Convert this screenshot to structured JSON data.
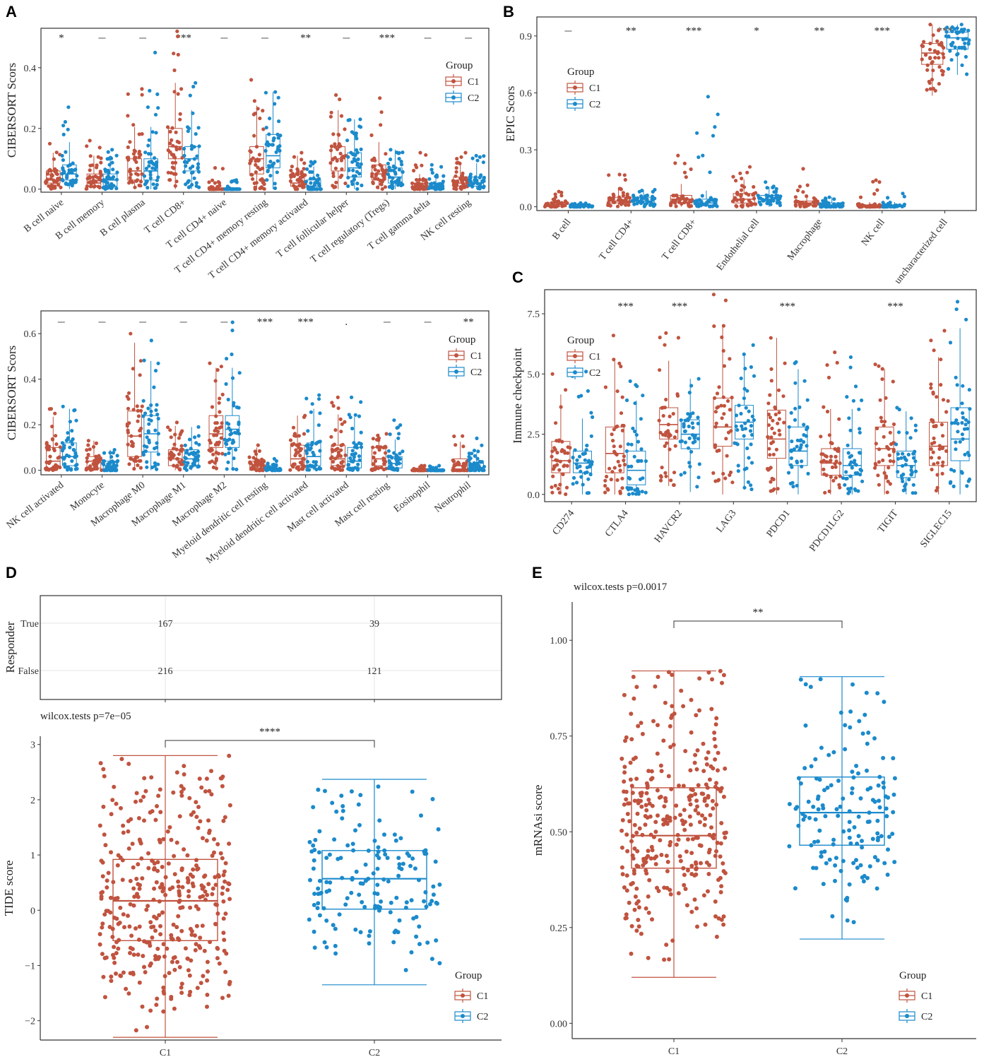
{
  "colors": {
    "C1": "#C0533F",
    "C2": "#1B8ACB",
    "frame": "#333333",
    "grid": "#e6e6e6"
  },
  "legend": {
    "title": "Group",
    "groups": [
      "C1",
      "C2"
    ]
  },
  "panels": {
    "A": "A",
    "B": "B",
    "C": "C",
    "D": "D",
    "E": "E"
  },
  "chart_data": [
    {
      "id": "A_top",
      "type": "box+jitter",
      "ylabel": "CIBERSORT Scors",
      "ylim": [
        -0.01,
        0.53
      ],
      "yticks": [
        "0.0",
        "0.2",
        "0.4"
      ],
      "ytick_values": [
        0,
        0.2,
        0.4
      ],
      "categories": [
        "B cell naive",
        "B cell memory",
        "B cell plasma",
        "T cell CD8+",
        "T cell CD4+ naive",
        "T cell CD4+ memory resting",
        "T cell CD4+ memory activated",
        "T cell follicular helper",
        "T cell regulatory (Tregs)",
        "T cell gamma delta",
        "NK cell resting"
      ],
      "significance": [
        "*",
        "_",
        "_",
        "***",
        "_",
        "_",
        "**",
        "_",
        "***",
        "_",
        "_"
      ],
      "series": [
        {
          "name": "C1",
          "q1": [
            0.02,
            0.01,
            0.03,
            0.1,
            0.0,
            0.05,
            0.01,
            0.06,
            0.03,
            0.0,
            0.01
          ],
          "median": [
            0.03,
            0.02,
            0.06,
            0.14,
            0.0,
            0.1,
            0.02,
            0.1,
            0.05,
            0.01,
            0.02
          ],
          "q3": [
            0.06,
            0.05,
            0.1,
            0.2,
            0.0,
            0.14,
            0.05,
            0.14,
            0.08,
            0.02,
            0.04
          ],
          "max": [
            0.15,
            0.16,
            0.33,
            0.52,
            0.07,
            0.36,
            0.12,
            0.31,
            0.3,
            0.12,
            0.12
          ]
        },
        {
          "name": "C2",
          "q1": [
            0.03,
            0.01,
            0.03,
            0.06,
            0.0,
            0.07,
            0.0,
            0.04,
            0.02,
            0.0,
            0.01
          ],
          "median": [
            0.05,
            0.03,
            0.06,
            0.1,
            0.0,
            0.11,
            0.01,
            0.07,
            0.04,
            0.01,
            0.02
          ],
          "q3": [
            0.08,
            0.05,
            0.1,
            0.14,
            0.0,
            0.18,
            0.03,
            0.12,
            0.07,
            0.02,
            0.04
          ],
          "max": [
            0.27,
            0.13,
            0.45,
            0.35,
            0.03,
            0.32,
            0.09,
            0.23,
            0.13,
            0.08,
            0.11
          ]
        }
      ]
    },
    {
      "id": "A_bottom",
      "type": "box+jitter",
      "ylabel": "CIBERSORT Scors",
      "ylim": [
        -0.02,
        0.7
      ],
      "yticks": [
        "0.0",
        "0.2",
        "0.4",
        "0.6"
      ],
      "ytick_values": [
        0,
        0.2,
        0.4,
        0.6
      ],
      "categories": [
        "NK cell activated",
        "Monocyte",
        "Macrophage M0",
        "Macrophage M1",
        "Macrophage M2",
        "Myeloid dendritic cell resting",
        "Myeloid dendritic cell activated",
        "Mast cell activated",
        "Mast cell resting",
        "Eosinophil",
        "Neutrophil"
      ],
      "significance": [
        "_",
        "_",
        "_",
        "_",
        "_",
        "***",
        "***",
        ".",
        "_",
        "_",
        "**"
      ],
      "series": [
        {
          "name": "C1",
          "q1": [
            0.01,
            0.01,
            0.06,
            0.02,
            0.1,
            0.0,
            0.02,
            0.02,
            0.02,
            0.0,
            0.0
          ],
          "median": [
            0.04,
            0.04,
            0.15,
            0.05,
            0.16,
            0.01,
            0.05,
            0.05,
            0.05,
            0.0,
            0.02
          ],
          "q3": [
            0.1,
            0.06,
            0.26,
            0.09,
            0.24,
            0.04,
            0.11,
            0.11,
            0.1,
            0.0,
            0.05
          ],
          "max": [
            0.27,
            0.13,
            0.6,
            0.21,
            0.47,
            0.11,
            0.24,
            0.32,
            0.16,
            0.02,
            0.15
          ]
        },
        {
          "name": "C2",
          "q1": [
            0.02,
            0.0,
            0.08,
            0.02,
            0.1,
            0.0,
            0.02,
            0.01,
            0.01,
            0.0,
            0.0
          ],
          "median": [
            0.06,
            0.02,
            0.16,
            0.05,
            0.18,
            0.0,
            0.06,
            0.04,
            0.03,
            0.0,
            0.01
          ],
          "q3": [
            0.12,
            0.04,
            0.24,
            0.09,
            0.24,
            0.01,
            0.12,
            0.1,
            0.06,
            0.0,
            0.03
          ],
          "max": [
            0.28,
            0.09,
            0.57,
            0.19,
            0.65,
            0.05,
            0.33,
            0.32,
            0.22,
            0.02,
            0.14
          ]
        }
      ]
    },
    {
      "id": "B",
      "type": "box+jitter",
      "ylabel": "EPIC Scors",
      "ylim": [
        -0.02,
        1.0
      ],
      "yticks": [
        "0.0",
        "0.3",
        "0.6",
        "0.9"
      ],
      "ytick_values": [
        0,
        0.3,
        0.6,
        0.9
      ],
      "categories": [
        "B cell",
        "T cell CD4+",
        "T cell CD8+",
        "Endothelial cell",
        "Macrophage",
        "NK cell",
        "uncharacterized cell"
      ],
      "significance": [
        "_",
        "**",
        "***",
        "*",
        "**",
        "***",
        "***"
      ],
      "series": [
        {
          "name": "C1",
          "q1": [
            0.0,
            0.02,
            0.02,
            0.02,
            0.01,
            0.0,
            0.75
          ],
          "median": [
            0.01,
            0.03,
            0.04,
            0.04,
            0.02,
            0.0,
            0.81
          ],
          "q3": [
            0.02,
            0.05,
            0.06,
            0.07,
            0.03,
            0.01,
            0.86
          ],
          "max": [
            0.08,
            0.17,
            0.27,
            0.21,
            0.2,
            0.14,
            0.96
          ]
        },
        {
          "name": "C2",
          "q1": [
            0.0,
            0.02,
            0.01,
            0.03,
            0.0,
            0.0,
            0.83
          ],
          "median": [
            0.0,
            0.03,
            0.02,
            0.04,
            0.01,
            0.0,
            0.89
          ],
          "q3": [
            0.01,
            0.05,
            0.04,
            0.06,
            0.02,
            0.01,
            0.92
          ],
          "max": [
            0.02,
            0.09,
            0.58,
            0.13,
            0.05,
            0.07,
            0.96
          ]
        }
      ]
    },
    {
      "id": "C",
      "type": "box+jitter",
      "ylabel": "Immune checkpoint",
      "ylim": [
        -0.3,
        8.5
      ],
      "yticks": [
        "0.0",
        "2.5",
        "5.0",
        "7.5"
      ],
      "ytick_values": [
        0,
        2.5,
        5.0,
        7.5
      ],
      "categories": [
        "CD274",
        "CTLA4",
        "HAVCR2",
        "LAG3",
        "PDCD1",
        "PDCD1LG2",
        "TIGIT",
        "SIGLEC15"
      ],
      "significance": [
        "",
        "***",
        "***",
        "",
        "***",
        "",
        "***",
        ""
      ],
      "series": [
        {
          "name": "C1",
          "q1": [
            0.9,
            0.9,
            2.3,
            2.0,
            1.5,
            0.8,
            1.2,
            1.2
          ],
          "median": [
            1.4,
            1.7,
            2.9,
            2.8,
            2.3,
            1.3,
            1.9,
            2.0
          ],
          "q3": [
            2.2,
            2.8,
            3.6,
            4.0,
            3.5,
            1.9,
            2.8,
            3.0
          ],
          "max": [
            5.0,
            6.6,
            6.7,
            8.3,
            6.5,
            5.9,
            5.4,
            6.8
          ]
        },
        {
          "name": "C2",
          "q1": [
            0.9,
            0.4,
            1.9,
            2.3,
            1.2,
            0.8,
            0.7,
            1.4
          ],
          "median": [
            1.3,
            1.0,
            2.5,
            3.0,
            1.8,
            1.2,
            1.2,
            2.3
          ],
          "q3": [
            1.8,
            1.8,
            3.1,
            3.7,
            2.8,
            1.9,
            1.8,
            3.6
          ],
          "max": [
            5.1,
            4.7,
            4.8,
            6.2,
            5.5,
            5.7,
            3.6,
            8.0
          ]
        }
      ]
    },
    {
      "id": "D_table",
      "type": "table",
      "ylabel": "Responder",
      "rows": [
        "True",
        "False"
      ],
      "columns": [
        "C1",
        "C2"
      ],
      "values": [
        [
          167,
          39
        ],
        [
          216,
          121
        ]
      ]
    },
    {
      "id": "D_box",
      "type": "box+jitter",
      "annotation": "wilcox.tests p=7e−05",
      "significance": "****",
      "ylabel": "TIDE score",
      "ylim": [
        -2.35,
        3.15
      ],
      "yticks": [
        "−2",
        "−1",
        "0",
        "1",
        "2",
        "3"
      ],
      "ytick_values": [
        -2,
        -1,
        0,
        1,
        2,
        3
      ],
      "categories": [
        "C1",
        "C2"
      ],
      "stats": [
        {
          "name": "C1",
          "min": -2.3,
          "q1": -0.55,
          "median": 0.17,
          "q3": 0.92,
          "max": 2.8
        },
        {
          "name": "C2",
          "min": -1.35,
          "q1": 0.02,
          "median": 0.57,
          "q3": 1.08,
          "max": 2.37
        }
      ]
    },
    {
      "id": "E",
      "type": "box+jitter",
      "annotation": "wilcox.tests p=0.0017",
      "significance": "**",
      "ylabel": "mRNAsi score",
      "ylim": [
        -0.04,
        1.1
      ],
      "yticks": [
        "0.00",
        "0.25",
        "0.50",
        "0.75",
        "1.00"
      ],
      "ytick_values": [
        0,
        0.25,
        0.5,
        0.75,
        1.0
      ],
      "categories": [
        "C1",
        "C2"
      ],
      "stats": [
        {
          "name": "C1",
          "min": 0.12,
          "q1": 0.405,
          "median": 0.49,
          "q3": 0.615,
          "max": 0.92
        },
        {
          "name": "C2",
          "min": 0.22,
          "q1": 0.465,
          "median": 0.55,
          "q3": 0.643,
          "max": 0.905
        }
      ]
    }
  ]
}
